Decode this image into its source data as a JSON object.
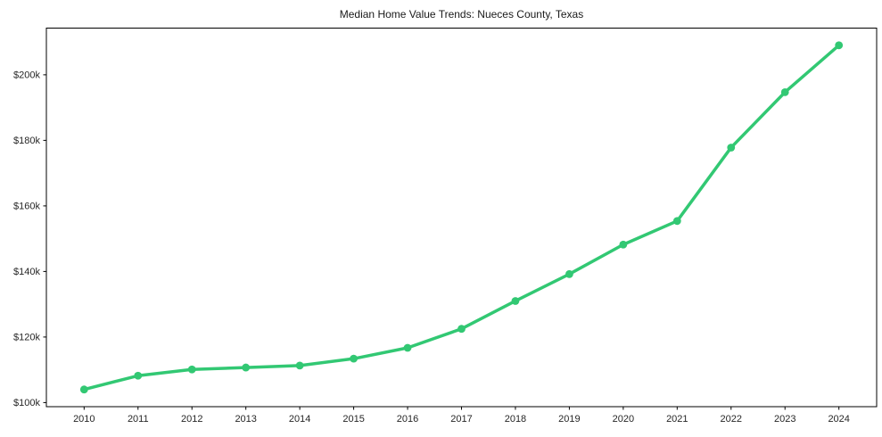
{
  "chart_data": {
    "type": "line",
    "title": "Median Home Value Trends: Nueces County, Texas",
    "xlabel": "",
    "ylabel": "",
    "x": [
      2010,
      2011,
      2012,
      2013,
      2014,
      2015,
      2016,
      2017,
      2018,
      2019,
      2020,
      2021,
      2022,
      2023,
      2024
    ],
    "xticks": [
      "2010",
      "2011",
      "2012",
      "2013",
      "2014",
      "2015",
      "2016",
      "2017",
      "2018",
      "2019",
      "2020",
      "2021",
      "2022",
      "2023",
      "2024"
    ],
    "series": [
      {
        "name": "Median Home Value",
        "values": [
          104000,
          108200,
          110100,
          110700,
          111300,
          113400,
          116700,
          122500,
          131000,
          139200,
          148200,
          155400,
          177800,
          194700,
          209000
        ]
      }
    ],
    "yticks": [
      {
        "value": 100000,
        "label": "$100k"
      },
      {
        "value": 120000,
        "label": "$120k"
      },
      {
        "value": 140000,
        "label": "$140k"
      },
      {
        "value": 160000,
        "label": "$160k"
      },
      {
        "value": 180000,
        "label": "$180k"
      },
      {
        "value": 200000,
        "label": "$200k"
      }
    ],
    "xlim": [
      2009.3,
      2024.7
    ],
    "ylim": [
      98750,
      214250
    ],
    "grid": false,
    "legend": null,
    "line_color": "#32c873",
    "frame_color": "#000000",
    "text_color": "#262626"
  }
}
